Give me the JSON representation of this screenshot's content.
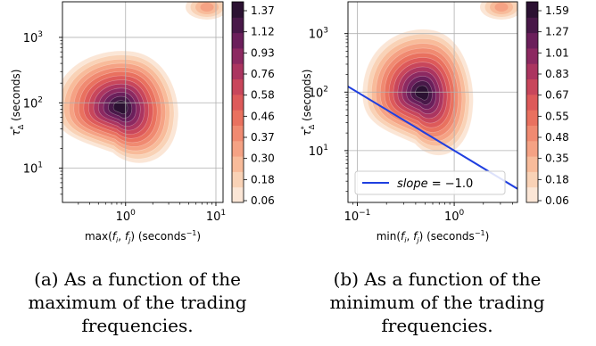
{
  "chart_data": [
    {
      "type": "heatmap",
      "panel": "a",
      "ylabel": "τΔ* (seconds)",
      "xlabel": "max(fi, fj) (seconds⁻¹)",
      "xscale": "log",
      "yscale": "log",
      "xlim": [
        0.2,
        12
      ],
      "ylim": [
        3,
        3500
      ],
      "xticks": [
        {
          "value": 1,
          "base": "10",
          "exp": "0"
        },
        {
          "value": 10,
          "base": "10",
          "exp": "1"
        }
      ],
      "yticks": [
        {
          "value": 10,
          "base": "10",
          "exp": "1"
        },
        {
          "value": 100,
          "base": "10",
          "exp": "2"
        },
        {
          "value": 1000,
          "base": "10",
          "exp": "3"
        }
      ],
      "grid": true,
      "density_peak": {
        "x": 0.85,
        "y": 80
      },
      "colorbar": {
        "ticks": [
          "0.06",
          "0.18",
          "0.30",
          "0.37",
          "0.46",
          "0.58",
          "0.76",
          "0.93",
          "1.12",
          "1.37"
        ],
        "min": 0.06,
        "max": 1.5
      },
      "caption": [
        "(a) As a function of the",
        "maximum of the trading",
        "frequencies."
      ]
    },
    {
      "type": "heatmap",
      "panel": "b",
      "ylabel": "τΔ* (seconds)",
      "xlabel": "min(fi, fj) (seconds⁻¹)",
      "xscale": "log",
      "yscale": "log",
      "xlim": [
        0.08,
        4.5
      ],
      "ylim": [
        1.3,
        3500
      ],
      "xticks": [
        {
          "value": 0.1,
          "base": "10",
          "exp": "−1"
        },
        {
          "value": 1,
          "base": "10",
          "exp": "0"
        }
      ],
      "yticks": [
        {
          "value": 10,
          "base": "10",
          "exp": "1"
        },
        {
          "value": 100,
          "base": "10",
          "exp": "2"
        },
        {
          "value": 1000,
          "base": "10",
          "exp": "3"
        }
      ],
      "grid": true,
      "density_peak": {
        "x": 0.45,
        "y": 90
      },
      "reference_line": {
        "slope": -1.0,
        "intercept_at_x1": 10,
        "color": "#1f3fe0"
      },
      "legend": {
        "placement": "lower-left",
        "label": "slope",
        "value": "= −1.0"
      },
      "colorbar": {
        "ticks": [
          "0.06",
          "0.18",
          "0.35",
          "0.48",
          "0.55",
          "0.67",
          "0.83",
          "1.01",
          "1.27",
          "1.59"
        ],
        "min": 0.06,
        "max": 1.7
      },
      "caption": [
        "(b) As a function of the",
        "minimum of the trading",
        "frequencies."
      ]
    }
  ]
}
